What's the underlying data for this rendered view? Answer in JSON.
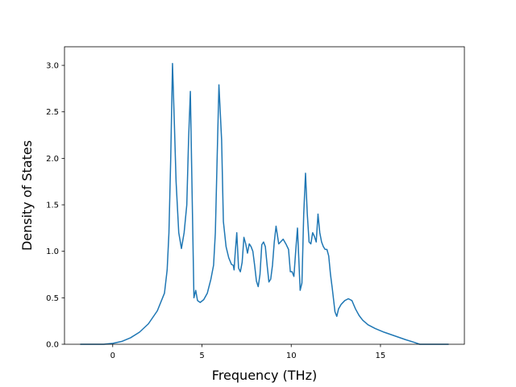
{
  "chart_data": {
    "type": "line",
    "title": "",
    "xlabel": "Frequency (THz)",
    "ylabel": "Density of States",
    "xlim": [
      -2.7,
      19.7
    ],
    "ylim": [
      0.0,
      3.2
    ],
    "xticks": [
      0,
      5,
      10,
      15
    ],
    "xtick_labels": [
      "0",
      "5",
      "10",
      "15"
    ],
    "yticks": [
      0.0,
      0.5,
      1.0,
      1.5,
      2.0,
      2.5,
      3.0
    ],
    "ytick_labels": [
      "0.0",
      "0.5",
      "1.0",
      "1.5",
      "2.0",
      "2.5",
      "3.0"
    ],
    "grid": false,
    "legend": "none",
    "series": [
      {
        "color": "#1f77b4",
        "x": [
          -1.8,
          -0.5,
          0.0,
          0.5,
          1.0,
          1.5,
          2.0,
          2.5,
          2.9,
          3.05,
          3.15,
          3.25,
          3.35,
          3.45,
          3.55,
          3.7,
          3.85,
          4.0,
          4.15,
          4.25,
          4.35,
          4.45,
          4.55,
          4.65,
          4.75,
          4.9,
          5.1,
          5.3,
          5.5,
          5.65,
          5.75,
          5.85,
          5.95,
          6.1,
          6.2,
          6.35,
          6.5,
          6.65,
          6.75,
          6.8,
          6.85,
          6.95,
          7.05,
          7.15,
          7.25,
          7.35,
          7.45,
          7.55,
          7.65,
          7.75,
          7.85,
          7.95,
          8.05,
          8.15,
          8.25,
          8.35,
          8.45,
          8.55,
          8.65,
          8.75,
          8.85,
          8.95,
          9.05,
          9.15,
          9.3,
          9.4,
          9.55,
          9.7,
          9.85,
          9.95,
          10.05,
          10.15,
          10.25,
          10.35,
          10.5,
          10.6,
          10.7,
          10.8,
          10.9,
          11.0,
          11.1,
          11.2,
          11.3,
          11.4,
          11.5,
          11.6,
          11.7,
          11.8,
          11.9,
          12.0,
          12.1,
          12.2,
          12.3,
          12.45,
          12.55,
          12.65,
          12.8,
          13.0,
          13.2,
          13.4,
          13.6,
          13.8,
          14.0,
          14.3,
          14.7,
          15.2,
          15.8,
          16.4,
          16.9,
          17.2,
          17.6,
          18.2,
          18.8
        ],
        "y": [
          0.0,
          0.0,
          0.01,
          0.03,
          0.07,
          0.13,
          0.22,
          0.36,
          0.55,
          0.8,
          1.2,
          2.0,
          3.02,
          2.4,
          1.75,
          1.2,
          1.03,
          1.2,
          1.5,
          2.2,
          2.72,
          1.6,
          0.5,
          0.58,
          0.47,
          0.45,
          0.48,
          0.55,
          0.7,
          0.85,
          1.2,
          2.0,
          2.79,
          2.2,
          1.32,
          1.05,
          0.93,
          0.86,
          0.85,
          0.8,
          0.95,
          1.2,
          0.82,
          0.78,
          0.88,
          1.15,
          1.08,
          0.98,
          1.08,
          1.05,
          1.0,
          0.85,
          0.68,
          0.62,
          0.75,
          1.07,
          1.1,
          1.05,
          0.85,
          0.67,
          0.7,
          0.85,
          1.1,
          1.27,
          1.08,
          1.1,
          1.13,
          1.08,
          1.02,
          0.78,
          0.78,
          0.73,
          1.0,
          1.25,
          0.58,
          0.66,
          1.4,
          1.84,
          1.4,
          1.1,
          1.08,
          1.2,
          1.16,
          1.1,
          1.4,
          1.2,
          1.1,
          1.05,
          1.02,
          1.02,
          0.95,
          0.75,
          0.6,
          0.35,
          0.3,
          0.38,
          0.43,
          0.47,
          0.49,
          0.47,
          0.38,
          0.31,
          0.26,
          0.21,
          0.17,
          0.13,
          0.09,
          0.05,
          0.02,
          0.0,
          0.0,
          0.0,
          0.0
        ]
      }
    ]
  }
}
